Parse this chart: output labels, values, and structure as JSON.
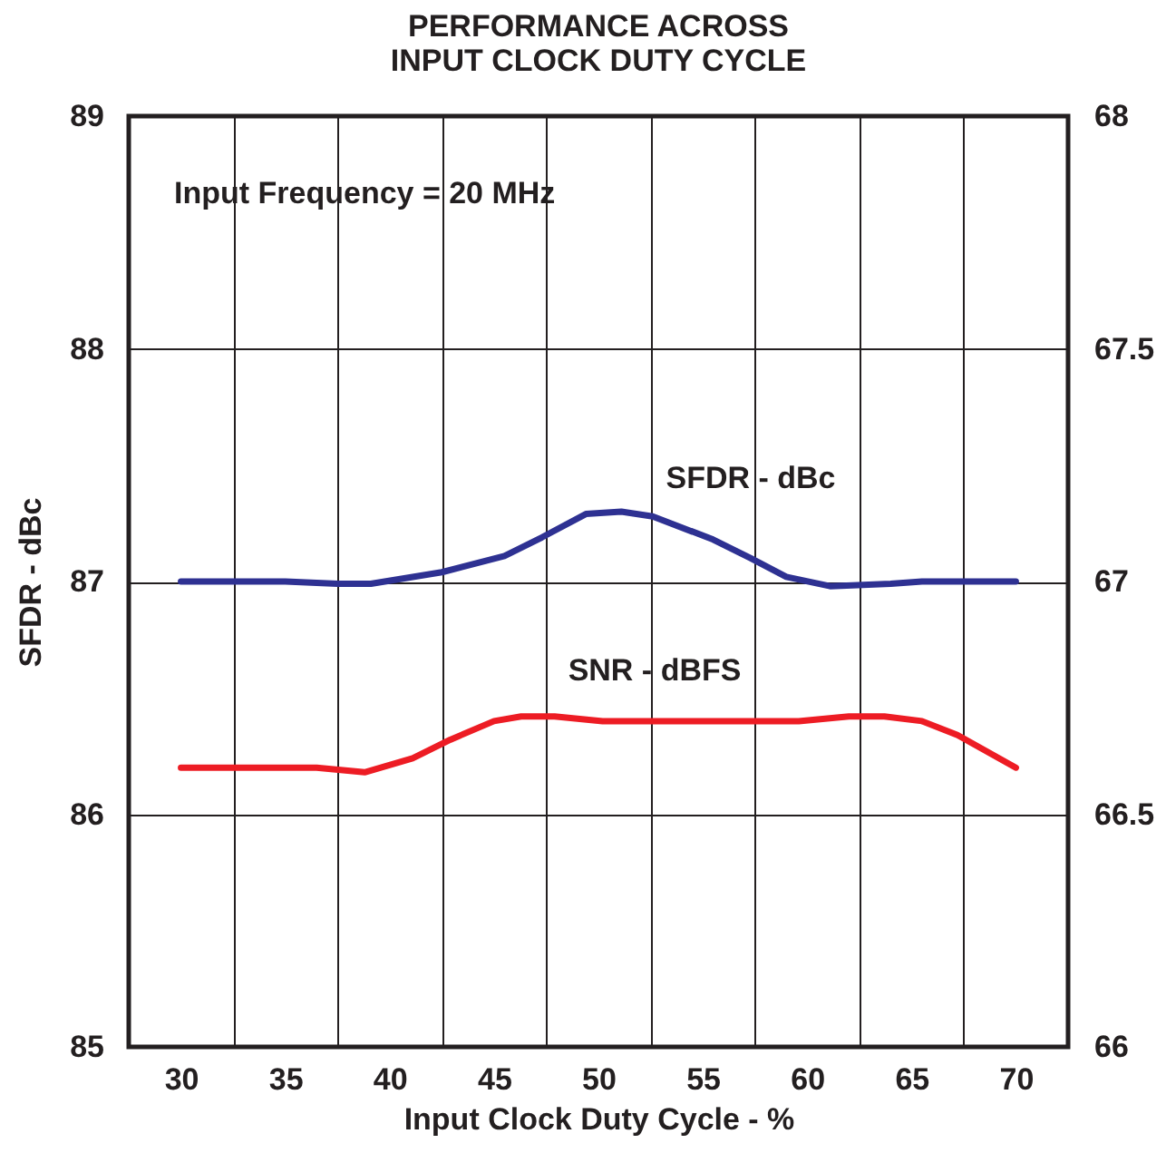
{
  "chart_data": {
    "type": "line",
    "title": "PERFORMANCE ACROSS\nINPUT CLOCK DUTY CYCLE",
    "xlabel": "Input Clock Duty Cycle - %",
    "ylabel": "SFDR - dBc",
    "annotations": [
      "Input Frequency = 20 MHz"
    ],
    "xlim": [
      27.5,
      72.5
    ],
    "xticks": [
      30,
      {
        "value": 32.5,
        "label": null
      },
      35,
      {
        "value": 37.5,
        "label": null
      },
      40,
      {
        "value": 42.5,
        "label": null
      },
      45,
      {
        "value": 47.5,
        "label": null
      },
      50,
      {
        "value": 52.5,
        "label": null
      },
      55,
      {
        "value": 57.5,
        "label": null
      },
      60,
      {
        "value": 62.5,
        "label": null
      },
      65,
      {
        "value": 67.5,
        "label": null
      },
      70
    ],
    "ylim": [
      85,
      89
    ],
    "yticks": [
      85,
      86,
      87,
      88,
      89
    ],
    "y2lim": [
      66,
      68
    ],
    "y2ticks": [
      66,
      66.5,
      67,
      67.5,
      68
    ],
    "grid": true,
    "legend": false,
    "series": [
      {
        "name": "SFDR - dBc",
        "color": "#2e3192",
        "x": [
          30,
          35,
          37.5,
          39.1,
          42.5,
          45.5,
          47.3,
          49.4,
          51.1,
          52.6,
          55.5,
          57.3,
          59.0,
          61.1,
          64.0,
          65.5,
          70
        ],
        "values": [
          87.0,
          87.0,
          86.99,
          86.99,
          87.04,
          87.11,
          87.19,
          87.29,
          87.3,
          87.28,
          87.18,
          87.1,
          87.02,
          86.98,
          86.99,
          87.0,
          87.0
        ]
      },
      {
        "name": "SNR - dBFS",
        "color": "#ed1c24",
        "axis": "y2",
        "x": [
          30,
          35,
          36.5,
          38.8,
          41.1,
          42.9,
          45,
          46.3,
          47.9,
          50.2,
          59.6,
          62,
          63.7,
          65.5,
          67.2,
          70
        ],
        "values": [
          66.6,
          66.6,
          66.6,
          66.59,
          66.62,
          66.66,
          66.7,
          66.71,
          66.71,
          66.7,
          66.7,
          66.71,
          66.71,
          66.7,
          66.67,
          66.6
        ]
      }
    ]
  }
}
